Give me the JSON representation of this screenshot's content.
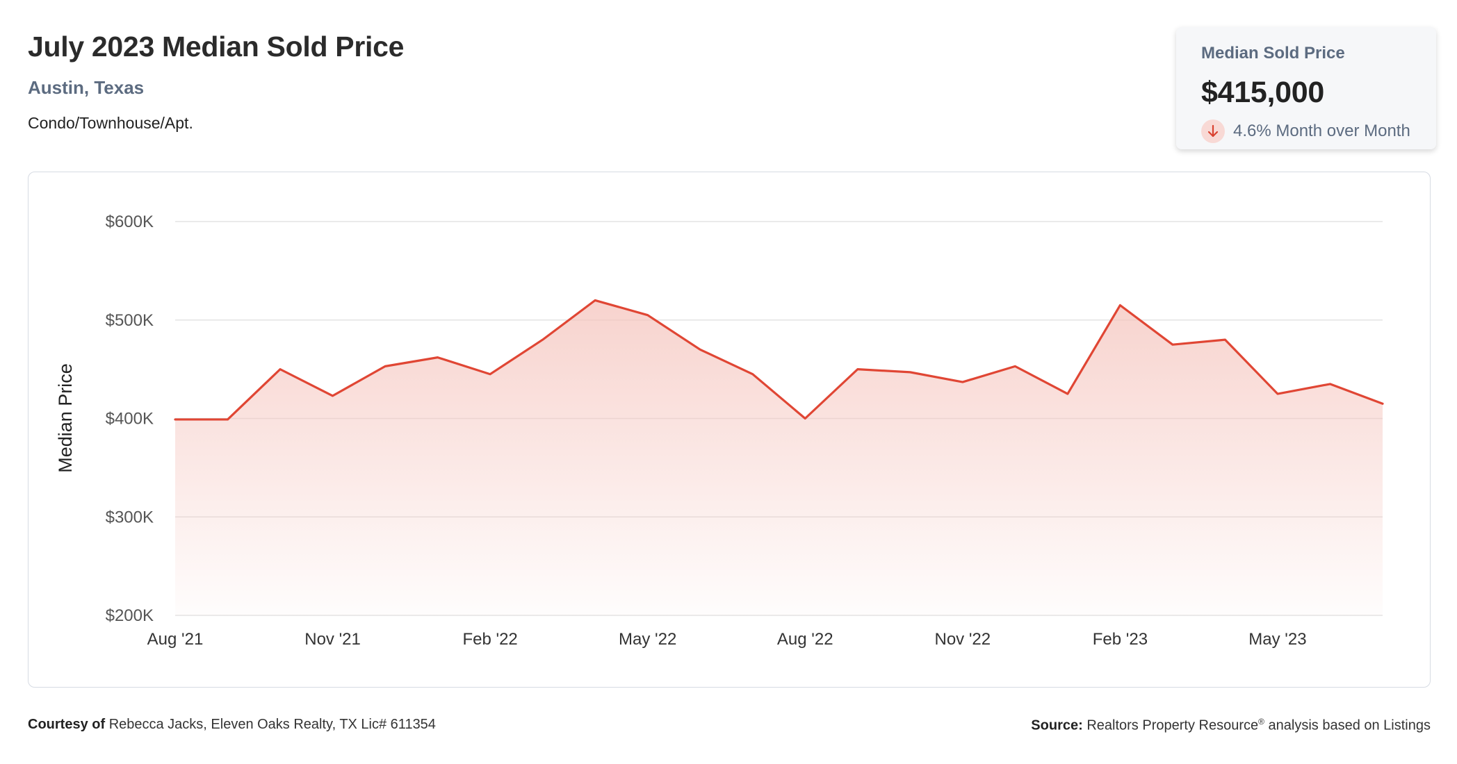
{
  "header": {
    "title": "July 2023 Median Sold Price",
    "location": "Austin, Texas",
    "property_type": "Condo/Townhouse/Apt."
  },
  "stat_card": {
    "label": "Median Sold Price",
    "value": "$415,000",
    "change": "4.6% Month over Month",
    "direction_icon": "arrow-down-icon"
  },
  "footer": {
    "courtesy_label": "Courtesy of",
    "courtesy_text": "Rebecca Jacks, Eleven Oaks Realty, TX Lic# 611354",
    "source_label": "Source:",
    "source_text_1": "Realtors Property Resource",
    "source_mark": "®",
    "source_text_2": " analysis based on Listings"
  },
  "colors": {
    "line": "#e04634",
    "fill_top": "#f5c4bd",
    "grid": "#e3e3e3",
    "axis_text": "#555555"
  },
  "chart_data": {
    "type": "area",
    "ylabel": "Median Price",
    "ylim": [
      200000,
      600000
    ],
    "yticks": [
      200000,
      300000,
      400000,
      500000,
      600000
    ],
    "ytick_labels": [
      "$200K",
      "$300K",
      "$400K",
      "$500K",
      "$600K"
    ],
    "xtick_labels": [
      "Aug '21",
      "Nov '21",
      "Feb '22",
      "May '22",
      "Aug '22",
      "Nov '22",
      "Feb '23",
      "May '23"
    ],
    "xtick_indices": [
      0,
      3,
      6,
      9,
      12,
      15,
      18,
      21
    ],
    "categories": [
      "Aug '21",
      "Sep '21",
      "Oct '21",
      "Nov '21",
      "Dec '21",
      "Jan '22",
      "Feb '22",
      "Mar '22",
      "Apr '22",
      "May '22",
      "Jun '22",
      "Jul '22",
      "Aug '22",
      "Sep '22",
      "Oct '22",
      "Nov '22",
      "Dec '22",
      "Jan '23",
      "Feb '23",
      "Mar '23",
      "Apr '23",
      "May '23",
      "Jun '23",
      "Jul '23"
    ],
    "values": [
      399000,
      399000,
      450000,
      423000,
      453000,
      462000,
      445000,
      480000,
      520000,
      505000,
      470000,
      445000,
      400000,
      450000,
      447000,
      437000,
      453000,
      425000,
      515000,
      475000,
      480000,
      425000,
      435000,
      415000
    ],
    "grid": true,
    "legend": "none"
  }
}
